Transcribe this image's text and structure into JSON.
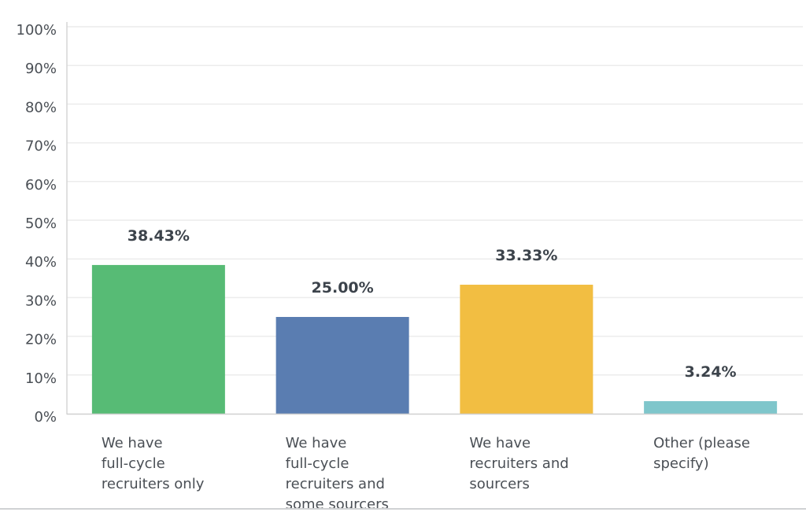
{
  "chart_data": {
    "type": "bar",
    "categories": [
      [
        "We have",
        "full-cycle",
        "recruiters only"
      ],
      [
        "We have",
        "full-cycle",
        "recruiters and",
        "some sourcers"
      ],
      [
        "We have",
        "recruiters and",
        "sourcers"
      ],
      [
        "Other (please",
        "specify)"
      ]
    ],
    "values": [
      38.43,
      25.0,
      33.33,
      3.24
    ],
    "data_labels": [
      "38.43%",
      "25.00%",
      "33.33%",
      "3.24%"
    ],
    "colors": [
      "#57bb75",
      "#5a7db1",
      "#f2be42",
      "#7fc6cb"
    ],
    "ylim": [
      0,
      100
    ],
    "yticks": [
      0,
      10,
      20,
      30,
      40,
      50,
      60,
      70,
      80,
      90,
      100
    ],
    "ytick_labels": [
      "0%",
      "10%",
      "20%",
      "30%",
      "40%",
      "50%",
      "60%",
      "70%",
      "80%",
      "90%",
      "100%"
    ],
    "grid": true,
    "title": "",
    "xlabel": "",
    "ylabel": ""
  }
}
